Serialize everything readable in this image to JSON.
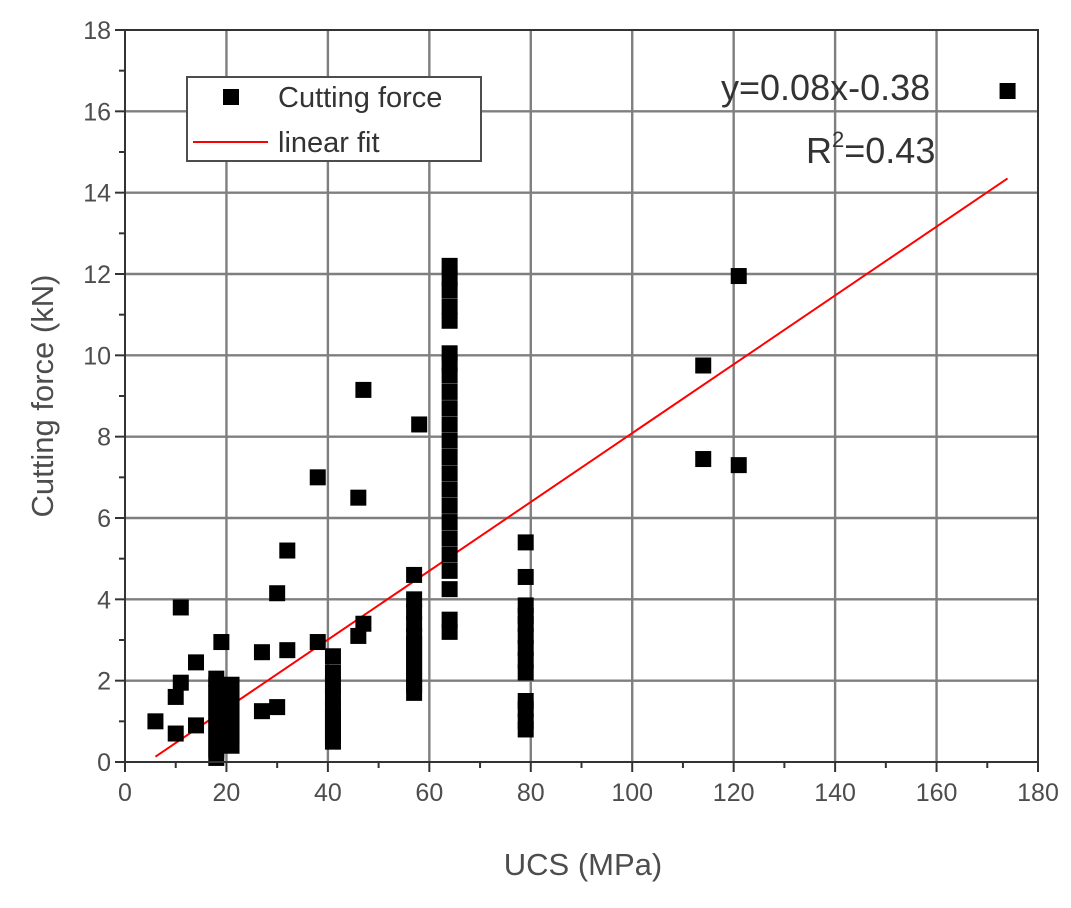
{
  "chart_data": {
    "type": "scatter",
    "title": "",
    "xlabel": "UCS (MPa)",
    "ylabel": "Cutting force (kN)",
    "xlim": [
      0,
      180
    ],
    "ylim": [
      0,
      18
    ],
    "x_ticks": [
      0,
      20,
      40,
      60,
      80,
      100,
      120,
      140,
      160,
      180
    ],
    "x_tick_labels": [
      "0",
      "20",
      "40",
      "60",
      "80",
      "100",
      "120",
      "140",
      "160",
      "180"
    ],
    "y_ticks": [
      0,
      2,
      4,
      6,
      8,
      10,
      12,
      14,
      16,
      18
    ],
    "y_tick_labels": [
      "0",
      "2",
      "4",
      "6",
      "8",
      "10",
      "12",
      "14",
      "16",
      "18"
    ],
    "grid": true,
    "legend_position": "top-left",
    "colors": {
      "points": "#000000",
      "fit_line": "#ff0000",
      "grid": "#7f7f7f",
      "axis": "#333333"
    },
    "series": [
      {
        "name": "Cutting force",
        "kind": "scatter",
        "color": "#000000",
        "x": [
          6,
          10,
          10,
          11,
          11,
          14,
          14,
          19,
          18,
          18,
          18,
          18,
          18,
          18,
          18,
          18,
          18,
          18,
          18,
          21,
          21,
          21,
          21,
          21,
          21,
          21,
          21,
          27,
          27,
          30,
          30,
          32,
          32,
          38,
          38,
          41,
          41,
          41,
          41,
          41,
          41,
          41,
          41,
          41,
          46,
          46,
          47,
          47,
          57,
          57,
          57,
          57,
          57,
          57,
          57,
          57,
          57,
          57,
          57,
          57,
          58,
          64,
          64,
          64,
          64,
          64,
          64,
          64,
          64,
          64,
          64,
          64,
          64,
          64,
          64,
          64,
          64,
          64,
          64,
          64,
          64,
          64,
          64,
          64,
          79,
          79,
          79,
          79,
          79,
          79,
          79,
          79,
          79,
          79,
          79,
          79,
          79,
          114,
          114,
          121,
          121,
          174
        ],
        "y": [
          1.0,
          0.7,
          1.6,
          1.95,
          3.8,
          0.9,
          2.45,
          2.95,
          0.1,
          0.3,
          0.5,
          0.7,
          0.9,
          1.1,
          1.3,
          1.5,
          1.7,
          1.9,
          2.05,
          0.4,
          0.6,
          0.8,
          1.0,
          1.2,
          1.4,
          1.6,
          1.9,
          1.25,
          2.7,
          1.35,
          4.15,
          2.75,
          5.2,
          2.95,
          7.0,
          0.5,
          0.7,
          0.9,
          1.1,
          1.3,
          1.6,
          1.9,
          2.2,
          2.6,
          3.1,
          6.5,
          3.4,
          9.15,
          1.7,
          1.9,
          2.1,
          2.3,
          2.5,
          2.7,
          2.9,
          3.1,
          3.4,
          3.7,
          4.0,
          4.6,
          8.3,
          3.2,
          3.5,
          4.25,
          4.7,
          5.1,
          5.5,
          5.9,
          6.3,
          6.7,
          7.1,
          7.5,
          7.9,
          8.3,
          8.7,
          9.1,
          9.5,
          9.8,
          10.05,
          10.85,
          11.2,
          11.6,
          11.9,
          12.2,
          0.8,
          1.0,
          1.3,
          1.5,
          2.2,
          2.5,
          2.8,
          3.1,
          3.4,
          3.6,
          3.85,
          4.55,
          5.4,
          7.45,
          9.75,
          7.3,
          11.95,
          16.5
        ]
      },
      {
        "name": "linear fit",
        "kind": "line",
        "color": "#ff0000",
        "x": [
          6,
          174
        ],
        "y": [
          0.13,
          14.35
        ]
      }
    ],
    "annotations": {
      "equation": "y=0.08x-0.38",
      "r2_prefix": "R",
      "r2_sup": "2",
      "r2_suffix": "=0.43"
    }
  }
}
